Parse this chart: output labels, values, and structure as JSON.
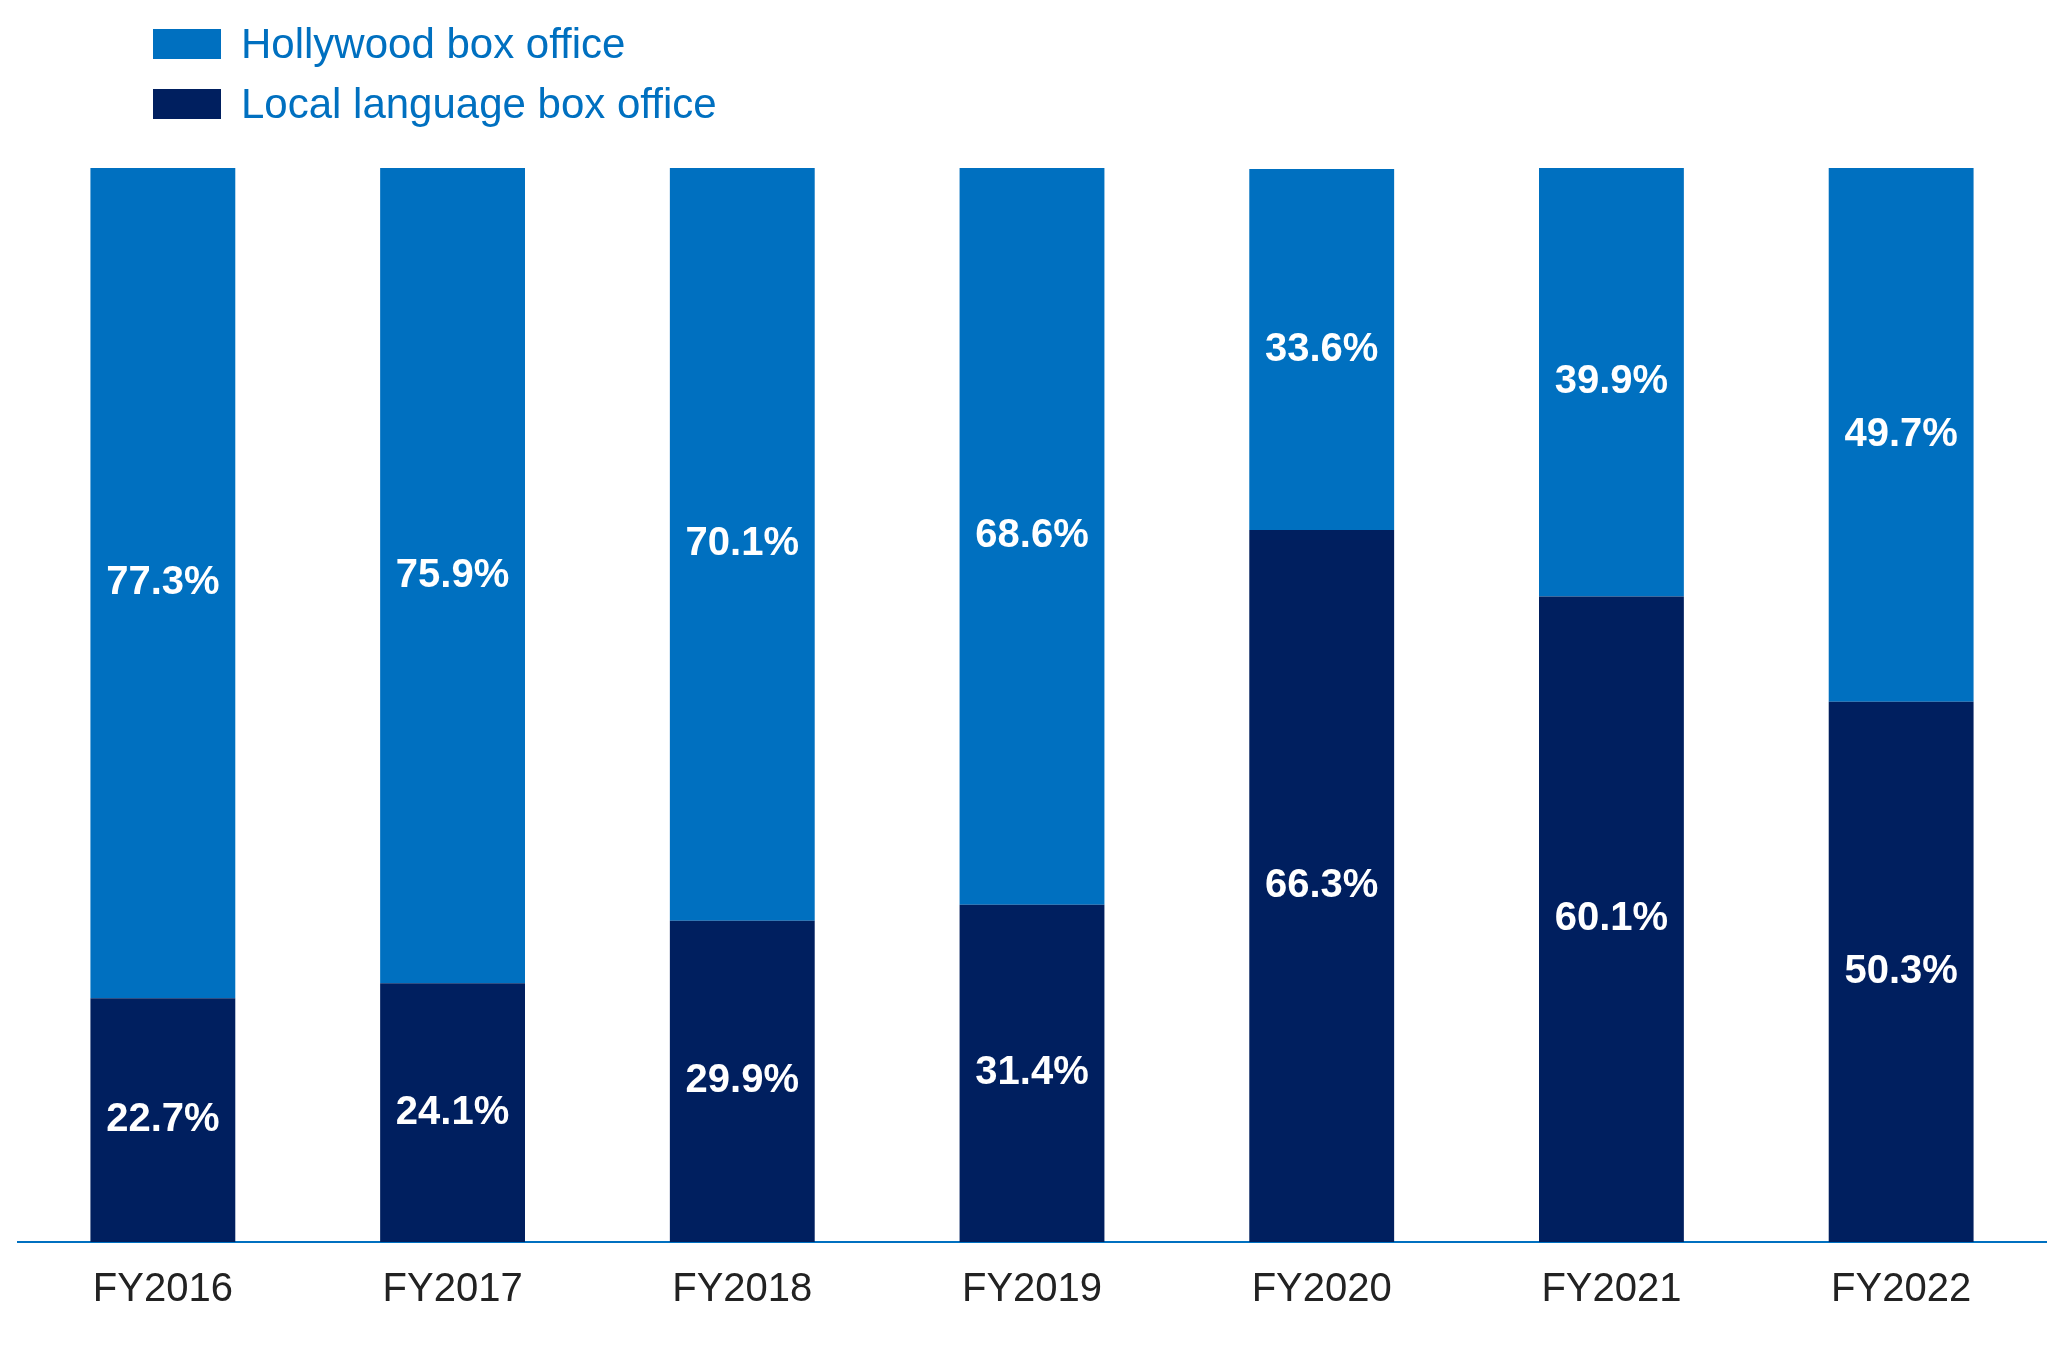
{
  "chart_data": {
    "type": "bar",
    "stacked": true,
    "categories": [
      "FY2016",
      "FY2017",
      "FY2018",
      "FY2019",
      "FY2020",
      "FY2021",
      "FY2022"
    ],
    "series": [
      {
        "name": "Local language box office",
        "color": "#001f5f",
        "values": [
          22.7,
          24.1,
          29.9,
          31.4,
          66.3,
          60.1,
          50.3
        ],
        "value_labels": [
          "22.7%",
          "24.1%",
          "29.9%",
          "31.4%",
          "66.3%",
          "60.1%",
          "50.3%"
        ]
      },
      {
        "name": "Hollywood box office",
        "color": "#0070c0",
        "values": [
          77.3,
          75.9,
          70.1,
          68.6,
          33.6,
          39.9,
          49.7
        ],
        "value_labels": [
          "77.3%",
          "75.9%",
          "70.1%",
          "68.6%",
          "33.6%",
          "39.9%",
          "49.7%"
        ]
      }
    ],
    "legend": "top left",
    "grid": false
  }
}
